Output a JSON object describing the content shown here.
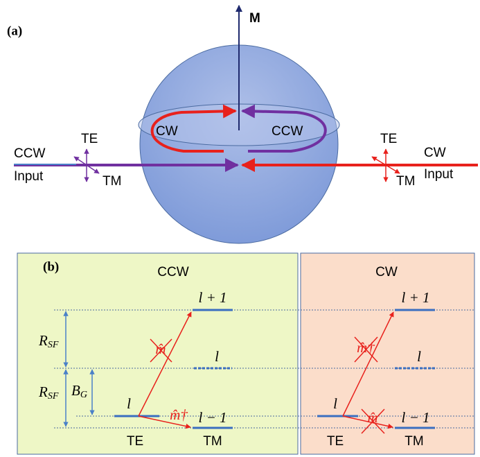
{
  "panel_a": {
    "label": "(a)",
    "axis": "M",
    "loop_left": "CW",
    "loop_right": "CCW",
    "left_port": {
      "te": "TE",
      "tm": "TM",
      "direction": "CCW",
      "input": "Input"
    },
    "right_port": {
      "te": "TE",
      "tm": "TM",
      "direction": "CW",
      "input": "Input"
    }
  },
  "panel_b": {
    "label": "(b)",
    "ccw": {
      "title": "CCW",
      "rsf_top": {
        "main": "R",
        "sub": "SF"
      },
      "rsf_bottom": {
        "main": "R",
        "sub": "SF"
      },
      "bg": {
        "main": "B",
        "sub": "G"
      },
      "te_level": "l",
      "upper": "l + 1",
      "middle": "l",
      "lower": "l − 1",
      "op_up": "m̂",
      "op_down": "m̂†",
      "te": "TE",
      "tm": "TM"
    },
    "cw": {
      "title": "CW",
      "te_level": "l",
      "upper": "l + 1",
      "middle": "l",
      "lower": "l − 1",
      "op_up": "m̂†",
      "op_down": "m̂",
      "te": "TE",
      "tm": "TM"
    }
  }
}
